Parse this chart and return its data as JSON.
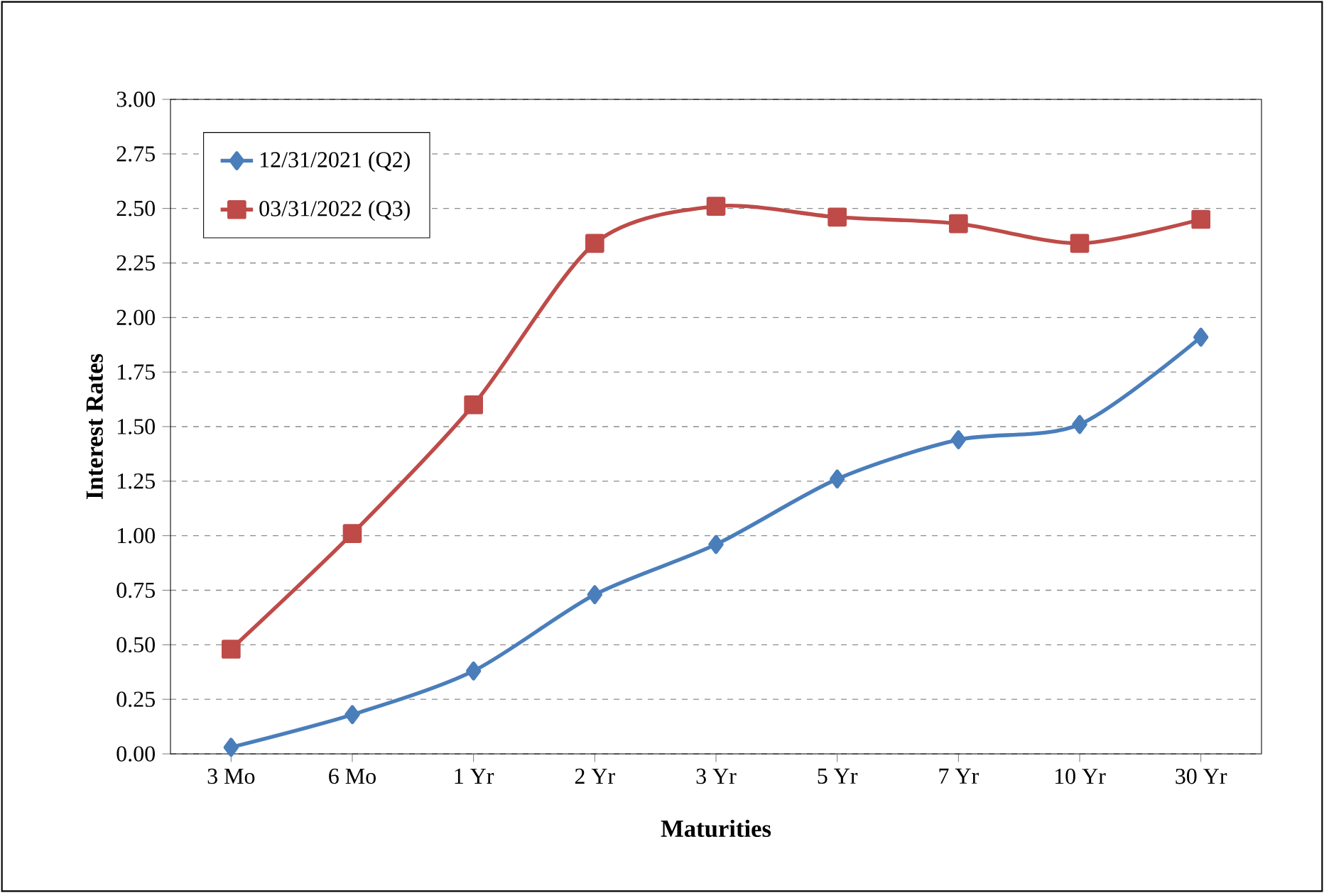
{
  "chart_data": {
    "type": "line",
    "xlabel": "Maturities",
    "ylabel": "Interest Rates",
    "categories": [
      "3 Mo",
      "6 Mo",
      "1 Yr",
      "2 Yr",
      "3 Yr",
      "5 Yr",
      "7 Yr",
      "10 Yr",
      "30 Yr"
    ],
    "series": [
      {
        "name": "12/31/2021 (Q2)",
        "color": "#4a7ebb",
        "marker": "diamond",
        "values": [
          0.03,
          0.18,
          0.38,
          0.73,
          0.96,
          1.26,
          1.44,
          1.51,
          1.91
        ]
      },
      {
        "name": "03/31/2022 (Q3)",
        "color": "#be4b48",
        "marker": "square",
        "values": [
          0.48,
          1.01,
          1.6,
          2.34,
          2.51,
          2.46,
          2.43,
          2.34,
          2.45
        ]
      }
    ],
    "ylim": [
      0,
      3
    ],
    "yticks": [
      {
        "value": 0,
        "label": "0.00"
      },
      {
        "value": 0.25,
        "label": "0.25"
      },
      {
        "value": 0.5,
        "label": "0.50"
      },
      {
        "value": 0.75,
        "label": "0.75"
      },
      {
        "value": 1,
        "label": "1.00"
      },
      {
        "value": 1.25,
        "label": "1.25"
      },
      {
        "value": 1.5,
        "label": "1.50"
      },
      {
        "value": 1.75,
        "label": "1.75"
      },
      {
        "value": 2,
        "label": "2.00"
      },
      {
        "value": 2.25,
        "label": "2.25"
      },
      {
        "value": 2.5,
        "label": "2.50"
      },
      {
        "value": 2.75,
        "label": "2.75"
      },
      {
        "value": 3,
        "label": "3.00"
      }
    ],
    "grid": "y",
    "legend": "top left",
    "line_style": "solid"
  }
}
